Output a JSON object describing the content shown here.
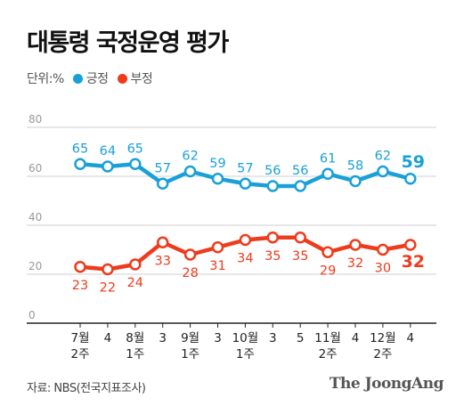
{
  "title": "대통령 국정운영 평가",
  "unit_label": "단위:%",
  "source": "자료: NBS(전국지표조사)",
  "brand": "The JoongAng",
  "colors": {
    "positive": "#1aa0d8",
    "negative": "#ef3a1c",
    "grid": "#cfcfcf",
    "axis": "#222222",
    "tick_text": "#999999"
  },
  "chart_data": {
    "type": "line",
    "x_tick_labels": [
      [
        "7월",
        "2주"
      ],
      [
        "4",
        ""
      ],
      [
        "8월",
        "1주"
      ],
      [
        "3",
        ""
      ],
      [
        "9월",
        "1주"
      ],
      [
        "3",
        ""
      ],
      [
        "10월",
        "1주"
      ],
      [
        "3",
        ""
      ],
      [
        "5",
        ""
      ],
      [
        "11월",
        "2주"
      ],
      [
        "4",
        ""
      ],
      [
        "12월",
        "2주"
      ],
      [
        "4",
        ""
      ]
    ],
    "y_ticks": [
      0,
      20,
      40,
      60,
      80
    ],
    "ylim": [
      0,
      80
    ],
    "grid": true,
    "legend_position": "top-left",
    "series": [
      {
        "name": "긍정",
        "color": "#1aa0d8",
        "values": [
          65,
          64,
          65,
          57,
          62,
          59,
          57,
          56,
          56,
          61,
          58,
          62,
          59
        ]
      },
      {
        "name": "부정",
        "color": "#ef3a1c",
        "values": [
          23,
          22,
          24,
          33,
          28,
          31,
          34,
          35,
          35,
          29,
          32,
          30,
          32
        ]
      }
    ]
  }
}
